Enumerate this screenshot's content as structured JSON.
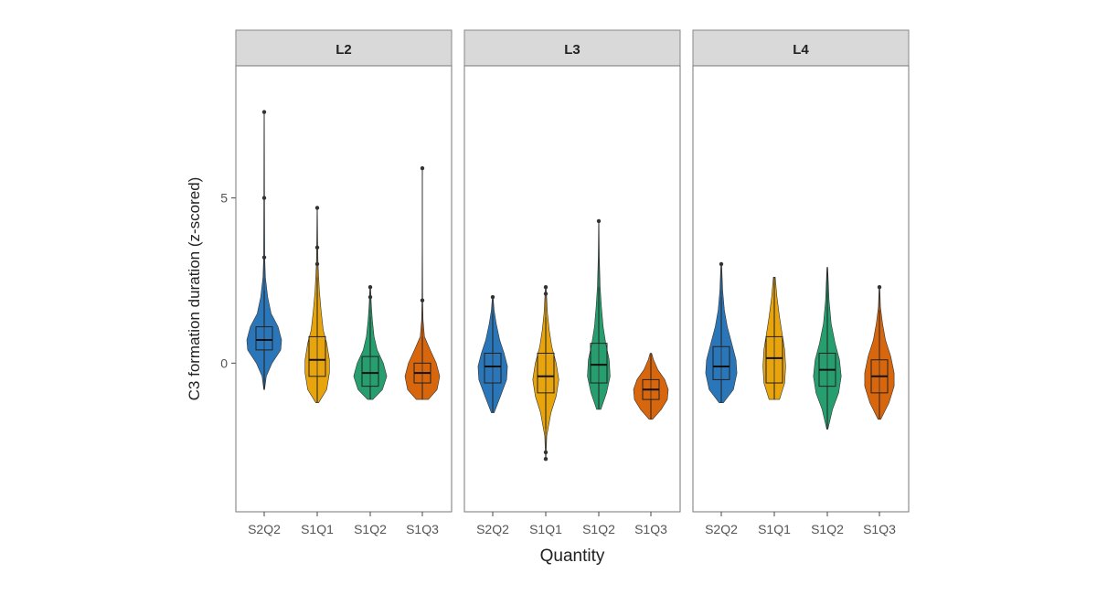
{
  "chart_data": {
    "type": "violin",
    "ylabel": "C3 formation duration (z-scored)",
    "xlabel": "Quantity",
    "ylim": [
      -4.5,
      9.0
    ],
    "yticks": [
      0,
      5
    ],
    "categories": [
      "S2Q2",
      "S1Q1",
      "S1Q2",
      "S1Q3"
    ],
    "colors": {
      "S2Q2": "#1f6fb4",
      "S1Q1": "#e69f00",
      "S1Q2": "#1a9966",
      "S1Q3": "#d55e00"
    },
    "grid": false,
    "legend": "none",
    "panels": [
      {
        "label": "L2",
        "groups": [
          {
            "category": "S2Q2",
            "median": 0.7,
            "q1": 0.4,
            "q3": 1.1,
            "whisker_low": -0.8,
            "whisker_high": 2.2,
            "min": -0.8,
            "max": 7.6,
            "outliers": [
              7.6,
              5.0,
              3.2
            ],
            "density": [
              [
                -0.8,
                0.02
              ],
              [
                -0.4,
                0.12
              ],
              [
                0.0,
                0.45
              ],
              [
                0.4,
                0.95
              ],
              [
                0.7,
                1.0
              ],
              [
                1.1,
                0.8
              ],
              [
                1.5,
                0.4
              ],
              [
                2.0,
                0.2
              ],
              [
                2.6,
                0.07
              ],
              [
                3.2,
                0.03
              ],
              [
                5.0,
                0.02
              ],
              [
                7.6,
                0.01
              ]
            ]
          },
          {
            "category": "S1Q1",
            "median": 0.1,
            "q1": -0.4,
            "q3": 0.8,
            "whisker_low": -1.2,
            "whisker_high": 2.6,
            "min": -1.2,
            "max": 4.7,
            "outliers": [
              4.7,
              3.5,
              3.0
            ],
            "density": [
              [
                -1.2,
                0.08
              ],
              [
                -0.8,
                0.55
              ],
              [
                -0.3,
                0.7
              ],
              [
                0.1,
                0.7
              ],
              [
                0.6,
                0.55
              ],
              [
                1.0,
                0.35
              ],
              [
                1.6,
                0.22
              ],
              [
                2.2,
                0.12
              ],
              [
                3.0,
                0.05
              ],
              [
                3.5,
                0.03
              ],
              [
                4.7,
                0.01
              ]
            ]
          },
          {
            "category": "S1Q2",
            "median": -0.3,
            "q1": -0.7,
            "q3": 0.2,
            "whisker_low": -1.1,
            "whisker_high": 1.4,
            "min": -1.1,
            "max": 2.3,
            "outliers": [
              2.3,
              2.0
            ],
            "density": [
              [
                -1.1,
                0.15
              ],
              [
                -0.8,
                0.7
              ],
              [
                -0.4,
                0.95
              ],
              [
                0.0,
                0.75
              ],
              [
                0.4,
                0.4
              ],
              [
                0.8,
                0.22
              ],
              [
                1.3,
                0.12
              ],
              [
                1.8,
                0.06
              ],
              [
                2.3,
                0.02
              ]
            ]
          },
          {
            "category": "S1Q3",
            "median": -0.3,
            "q1": -0.6,
            "q3": 0.0,
            "whisker_low": -1.1,
            "whisker_high": 0.8,
            "min": -1.1,
            "max": 5.9,
            "outliers": [
              5.9,
              1.9
            ],
            "density": [
              [
                -1.1,
                0.35
              ],
              [
                -0.8,
                0.85
              ],
              [
                -0.4,
                1.0
              ],
              [
                0.0,
                0.8
              ],
              [
                0.4,
                0.45
              ],
              [
                0.8,
                0.12
              ],
              [
                1.3,
                0.04
              ],
              [
                1.9,
                0.02
              ],
              [
                3.5,
                0.01
              ],
              [
                5.9,
                0.01
              ]
            ]
          }
        ]
      },
      {
        "label": "L3",
        "groups": [
          {
            "category": "S2Q2",
            "median": -0.1,
            "q1": -0.6,
            "q3": 0.3,
            "whisker_low": -1.5,
            "whisker_high": 1.5,
            "min": -1.5,
            "max": 2.0,
            "outliers": [
              2.0
            ],
            "density": [
              [
                -1.5,
                0.08
              ],
              [
                -1.0,
                0.45
              ],
              [
                -0.5,
                0.8
              ],
              [
                -0.1,
                0.85
              ],
              [
                0.3,
                0.65
              ],
              [
                0.7,
                0.4
              ],
              [
                1.2,
                0.2
              ],
              [
                1.6,
                0.08
              ],
              [
                2.0,
                0.02
              ]
            ]
          },
          {
            "category": "S1Q1",
            "median": -0.4,
            "q1": -0.9,
            "q3": 0.3,
            "whisker_low": -2.0,
            "whisker_high": 1.4,
            "min": -2.9,
            "max": 2.3,
            "outliers": [
              2.3,
              2.1,
              -2.7,
              -2.9
            ],
            "density": [
              [
                -2.9,
                0.01
              ],
              [
                -2.2,
                0.06
              ],
              [
                -1.5,
                0.3
              ],
              [
                -1.0,
                0.6
              ],
              [
                -0.5,
                0.75
              ],
              [
                0.0,
                0.6
              ],
              [
                0.5,
                0.35
              ],
              [
                1.0,
                0.2
              ],
              [
                1.5,
                0.1
              ],
              [
                2.3,
                0.02
              ]
            ]
          },
          {
            "category": "S1Q2",
            "median": -0.05,
            "q1": -0.6,
            "q3": 0.6,
            "whisker_low": -1.4,
            "whisker_high": 2.3,
            "min": -1.4,
            "max": 4.3,
            "outliers": [
              4.3
            ],
            "density": [
              [
                -1.4,
                0.12
              ],
              [
                -0.9,
                0.45
              ],
              [
                -0.4,
                0.65
              ],
              [
                0.1,
                0.6
              ],
              [
                0.6,
                0.4
              ],
              [
                1.1,
                0.25
              ],
              [
                1.7,
                0.15
              ],
              [
                2.3,
                0.08
              ],
              [
                3.2,
                0.03
              ],
              [
                4.3,
                0.01
              ]
            ]
          },
          {
            "category": "S1Q3",
            "median": -0.8,
            "q1": -1.1,
            "q3": -0.5,
            "whisker_low": -1.7,
            "whisker_high": 0.3,
            "min": -1.7,
            "max": 0.3,
            "outliers": [],
            "density": [
              [
                -1.7,
                0.1
              ],
              [
                -1.4,
                0.6
              ],
              [
                -1.1,
                0.95
              ],
              [
                -0.8,
                1.0
              ],
              [
                -0.5,
                0.8
              ],
              [
                -0.2,
                0.4
              ],
              [
                0.1,
                0.15
              ],
              [
                0.3,
                0.04
              ]
            ]
          }
        ]
      },
      {
        "label": "L4",
        "groups": [
          {
            "category": "S2Q2",
            "median": -0.1,
            "q1": -0.5,
            "q3": 0.5,
            "whisker_low": -1.2,
            "whisker_high": 2.0,
            "min": -1.2,
            "max": 3.0,
            "outliers": [
              3.0
            ],
            "density": [
              [
                -1.2,
                0.12
              ],
              [
                -0.8,
                0.7
              ],
              [
                -0.3,
                0.9
              ],
              [
                0.1,
                0.85
              ],
              [
                0.6,
                0.6
              ],
              [
                1.1,
                0.35
              ],
              [
                1.6,
                0.18
              ],
              [
                2.2,
                0.08
              ],
              [
                3.0,
                0.02
              ]
            ]
          },
          {
            "category": "S1Q1",
            "median": 0.15,
            "q1": -0.6,
            "q3": 0.8,
            "whisker_low": -1.1,
            "whisker_high": 2.6,
            "min": -1.1,
            "max": 2.6,
            "outliers": [],
            "density": [
              [
                -1.1,
                0.3
              ],
              [
                -0.6,
                0.6
              ],
              [
                -0.1,
                0.65
              ],
              [
                0.4,
                0.6
              ],
              [
                0.9,
                0.45
              ],
              [
                1.4,
                0.3
              ],
              [
                2.0,
                0.15
              ],
              [
                2.6,
                0.05
              ]
            ]
          },
          {
            "category": "S1Q2",
            "median": -0.2,
            "q1": -0.7,
            "q3": 0.3,
            "whisker_low": -2.0,
            "whisker_high": 2.9,
            "min": -2.0,
            "max": 2.9,
            "outliers": [],
            "density": [
              [
                -2.0,
                0.03
              ],
              [
                -1.4,
                0.3
              ],
              [
                -0.9,
                0.65
              ],
              [
                -0.4,
                0.8
              ],
              [
                0.1,
                0.7
              ],
              [
                0.6,
                0.45
              ],
              [
                1.2,
                0.22
              ],
              [
                1.9,
                0.1
              ],
              [
                2.9,
                0.02
              ]
            ]
          },
          {
            "category": "S1Q3",
            "median": -0.4,
            "q1": -0.9,
            "q3": 0.1,
            "whisker_low": -1.7,
            "whisker_high": 1.6,
            "min": -1.7,
            "max": 2.3,
            "outliers": [
              2.3
            ],
            "density": [
              [
                -1.7,
                0.08
              ],
              [
                -1.2,
                0.55
              ],
              [
                -0.7,
                0.85
              ],
              [
                -0.3,
                0.85
              ],
              [
                0.2,
                0.65
              ],
              [
                0.7,
                0.35
              ],
              [
                1.2,
                0.18
              ],
              [
                1.7,
                0.06
              ],
              [
                2.3,
                0.02
              ]
            ]
          }
        ]
      }
    ]
  }
}
